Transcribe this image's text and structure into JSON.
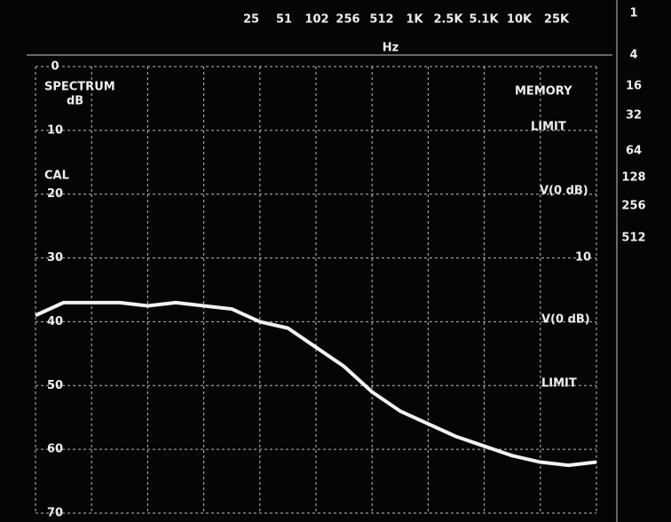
{
  "chart_data": {
    "type": "line",
    "header_labels": [
      "25",
      "51",
      "102",
      "256",
      "512",
      "1K",
      "2.5K",
      "5.1K",
      "10K",
      "25K"
    ],
    "header_unit": "Hz",
    "right_column_labels": [
      "1",
      "4",
      "16",
      "32",
      "64",
      "128",
      "256",
      "512"
    ],
    "left_labels": [
      "SPECTRUM",
      "dB",
      "CAL"
    ],
    "right_labels": [
      "MEMORY",
      "LIMIT",
      "V(0 dB)",
      "10",
      "V(0 dB)",
      "LIMIT"
    ],
    "xlim": [
      0,
      10
    ],
    "xticks": [
      0,
      1,
      2,
      3,
      4,
      5,
      6,
      7,
      8,
      9,
      10
    ],
    "ylim": [
      0,
      70
    ],
    "yticks": [
      0,
      10,
      20,
      30,
      40,
      50,
      60,
      70
    ],
    "grid": true,
    "series": [
      {
        "color": "#f2f2f2",
        "x": [
          0,
          0.5,
          1,
          1.5,
          2,
          2.5,
          3,
          3.5,
          4,
          4.5,
          5,
          5.5,
          6,
          6.5,
          7,
          7.5,
          8,
          8.5,
          9,
          9.5,
          10
        ],
        "values": [
          39,
          37,
          37,
          37,
          37.5,
          37,
          37.5,
          38,
          40,
          41,
          44,
          47,
          51,
          54,
          56,
          58,
          59.5,
          61,
          62,
          62.5,
          62
        ]
      }
    ]
  }
}
